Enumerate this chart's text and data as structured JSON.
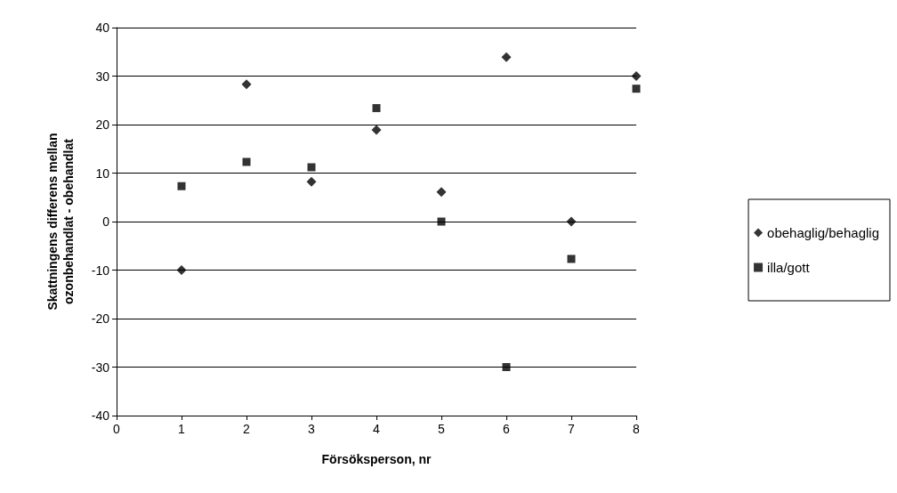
{
  "chart_data": {
    "type": "scatter",
    "xlabel": "Försöksperson, nr",
    "ylabel": "Skattningens differens mellan\nozonbehandlat - obehandlat",
    "x": [
      1,
      2,
      3,
      4,
      5,
      6,
      7,
      8
    ],
    "series": [
      {
        "name": "obehaglig/behaglig",
        "color": "#000000",
        "marker": "diamond",
        "values": [
          -10,
          28.3,
          8.2,
          18.9,
          6.1,
          33.9,
          0,
          30
        ]
      },
      {
        "name": "illa/gott",
        "color": "#000000",
        "marker": "square",
        "values": [
          7.3,
          12.3,
          11.2,
          23.4,
          0,
          -30,
          -7.7,
          27.4
        ]
      }
    ],
    "xlim": [
      0,
      8
    ],
    "xticks": [
      0,
      1,
      2,
      3,
      4,
      5,
      6,
      7,
      8
    ],
    "ylim": [
      -40,
      40
    ],
    "yticks": [
      -40,
      -30,
      -20,
      -10,
      0,
      10,
      20,
      30,
      40
    ],
    "grid": "y",
    "legend": "right"
  }
}
